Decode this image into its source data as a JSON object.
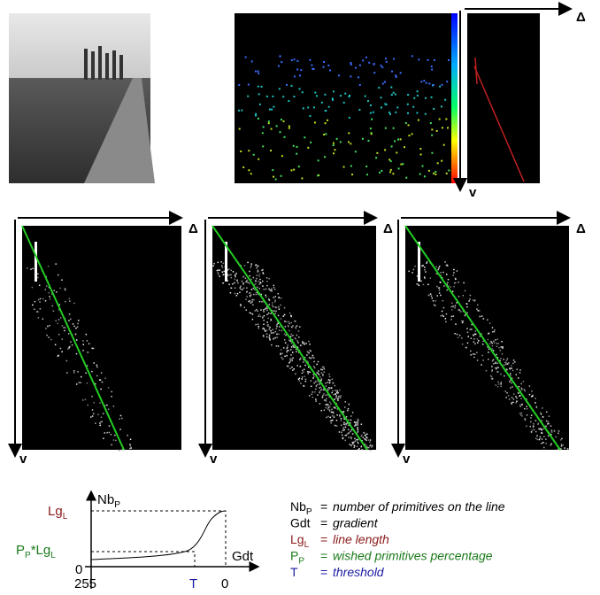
{
  "top_row": {
    "delta_label": "Δ",
    "v_label": "v"
  },
  "middle_row": {
    "delta_labels": [
      "Δ",
      "Δ",
      "Δ"
    ],
    "v_labels": [
      "v",
      "v",
      "v"
    ]
  },
  "graph": {
    "y_axis": {
      "main": "Nb",
      "sub": "P"
    },
    "x_axis": "Gdt",
    "lg_l": {
      "main": "Lg",
      "sub": "L"
    },
    "pp_lgl": {
      "p": "P",
      "p_sub": "P",
      "star": "*Lg",
      "l_sub": "L"
    },
    "y_zero": "0",
    "x_start": "255",
    "t": "T",
    "x_end": "0"
  },
  "legend": [
    {
      "symbol": "Nb",
      "sub": "P",
      "eq": "=",
      "text": "number of primitives on the line"
    },
    {
      "symbol": "Gdt",
      "eq": "=",
      "text": "gradient"
    },
    {
      "symbol": "Lg",
      "sub": "L",
      "eq": "=",
      "text": "line length"
    },
    {
      "symbol": "P",
      "sub": "P",
      "eq": "=",
      "text": "wished primitives percentage"
    },
    {
      "symbol": "T",
      "eq": "=",
      "text": "threshold"
    }
  ]
}
